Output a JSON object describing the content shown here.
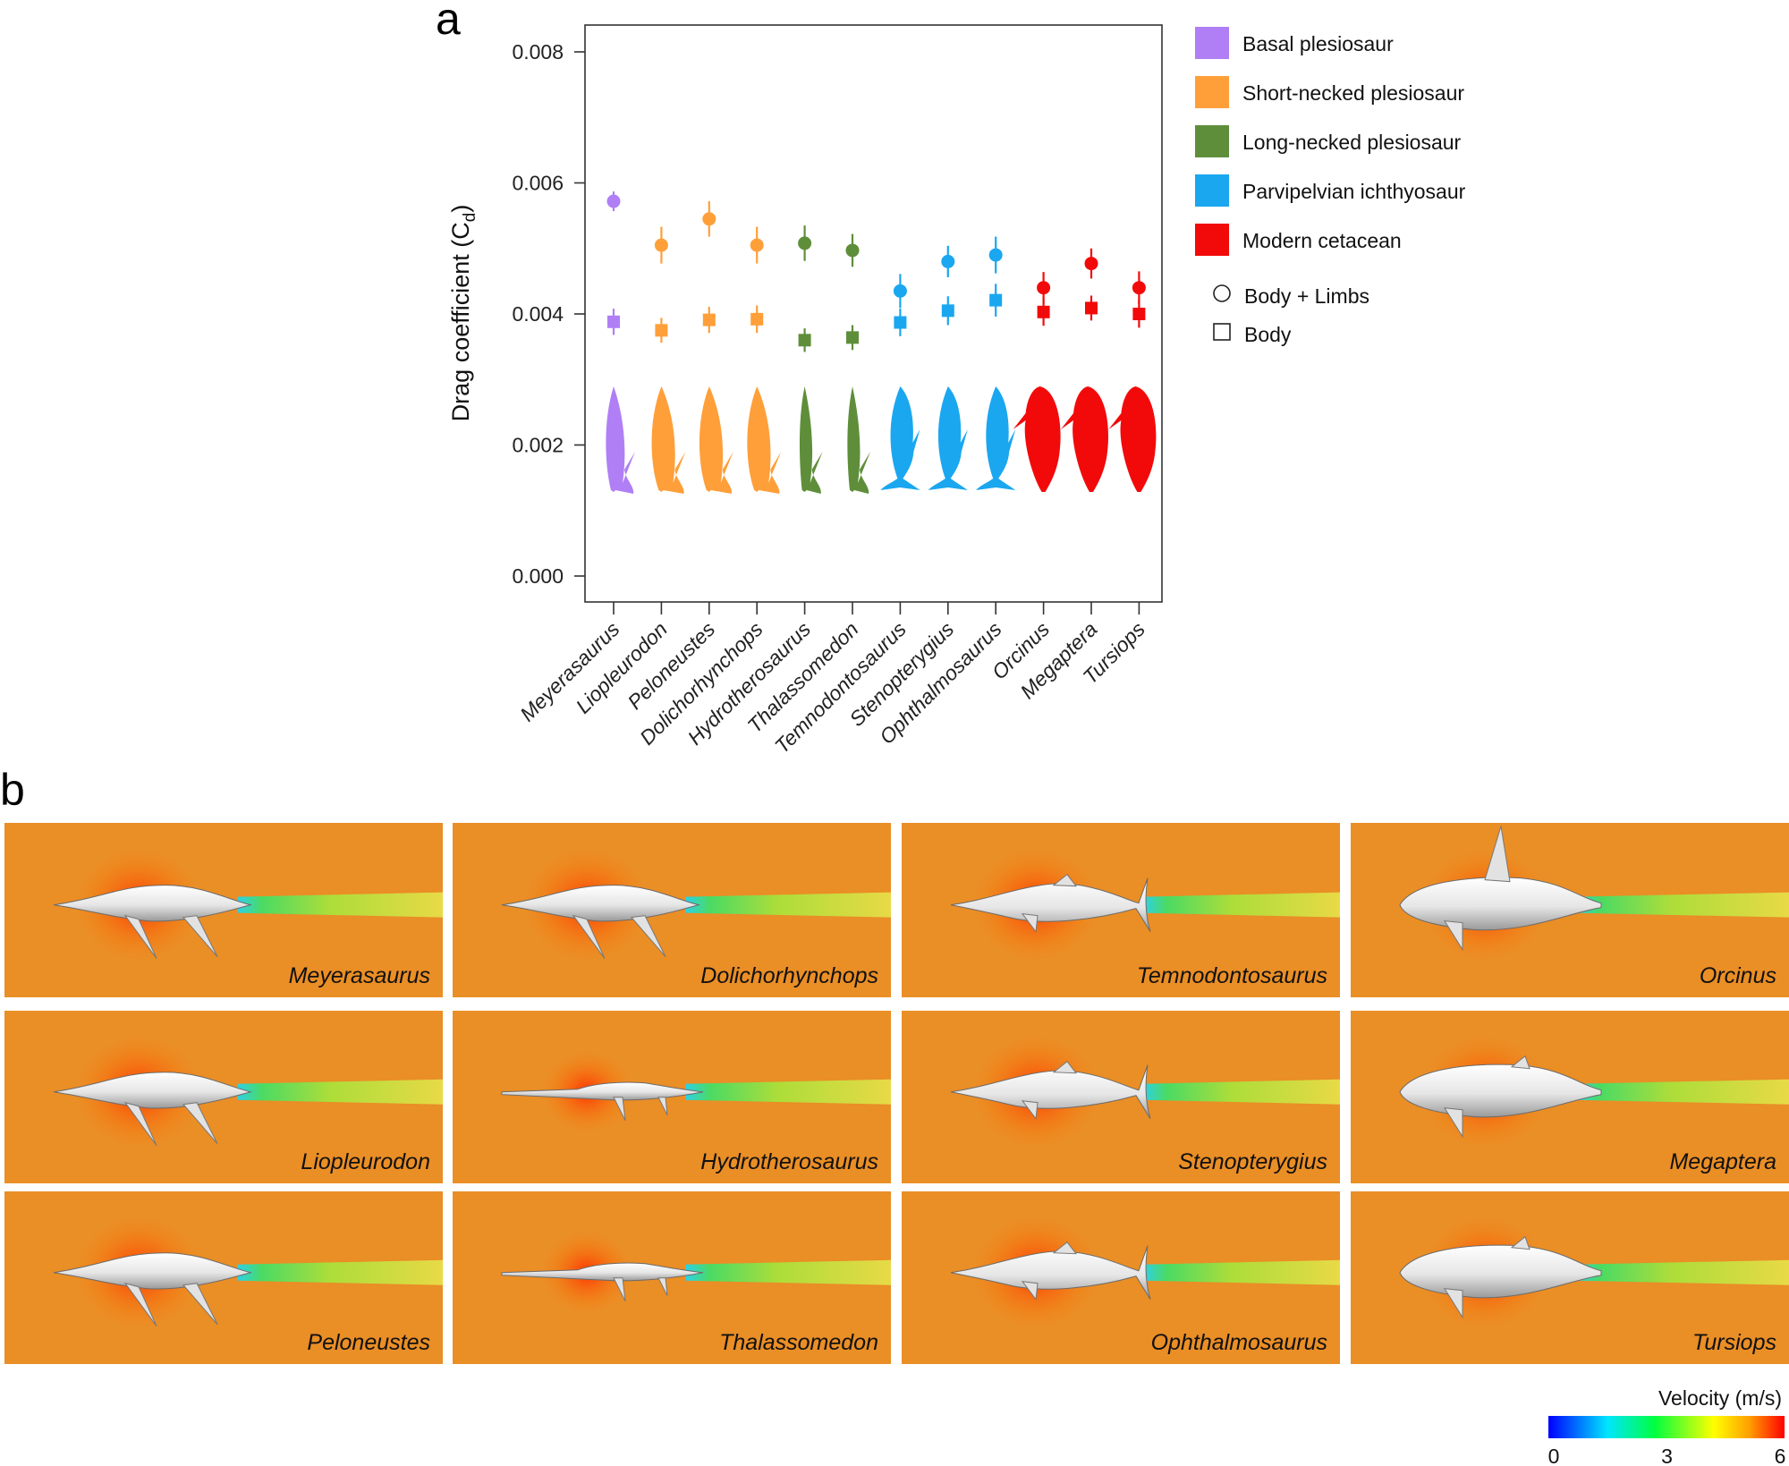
{
  "panel_labels": {
    "a": "a",
    "b": "b"
  },
  "chart_data": [
    {
      "type": "scatter",
      "title": "",
      "ylabel": "Drag coefficient (C",
      "ylabel_subscript": "d",
      "ylabel_close": ")",
      "ylim": [
        0,
        0.0084
      ],
      "yticks": [
        "0.000",
        "0.002",
        "0.004",
        "0.006",
        "0.008"
      ],
      "ytick_values": [
        0.0,
        0.002,
        0.004,
        0.006,
        0.008
      ],
      "categories": [
        "Meyerasaurus",
        "Liopleurodon",
        "Peloneustes",
        "Dolichorhynchops",
        "Hydrotherosaurus",
        "Thalassomedon",
        "Temnodontosaurus",
        "Stenopterygius",
        "Ophthalmosaurus",
        "Orcinus",
        "Megaptera",
        "Tursiops"
      ],
      "groups": [
        "Basal plesiosaur",
        "Short-necked plesiosaur",
        "Short-necked plesiosaur",
        "Short-necked plesiosaur",
        "Long-necked plesiosaur",
        "Long-necked plesiosaur",
        "Parvipelvian ichthyosaur",
        "Parvipelvian ichthyosaur",
        "Parvipelvian ichthyosaur",
        "Modern cetacean",
        "Modern cetacean",
        "Modern cetacean"
      ],
      "series": [
        {
          "name": "Body + Limbs",
          "marker": "circle",
          "values": [
            0.00572,
            0.00505,
            0.00545,
            0.00505,
            0.00508,
            0.00497,
            0.00435,
            0.0048,
            0.0049,
            0.0044,
            0.00477,
            0.0044
          ],
          "err": [
            0.00015,
            0.00028,
            0.00027,
            0.00028,
            0.00027,
            0.00025,
            0.00026,
            0.00024,
            0.00028,
            0.00024,
            0.00023,
            0.00025
          ]
        },
        {
          "name": "Body",
          "marker": "square",
          "values": [
            0.00388,
            0.00375,
            0.00391,
            0.00392,
            0.0036,
            0.00364,
            0.00387,
            0.00405,
            0.00421,
            0.00403,
            0.00409,
            0.004
          ],
          "err": [
            0.0002,
            0.00019,
            0.0002,
            0.00021,
            0.00018,
            0.00019,
            0.00021,
            0.00022,
            0.00025,
            0.00021,
            0.00019,
            0.00021
          ]
        }
      ],
      "legend": [
        {
          "label": "Basal plesiosaur",
          "color": "#b07ff5"
        },
        {
          "label": "Short-necked plesiosaur",
          "color": "#ff9f3a"
        },
        {
          "label": "Long-necked plesiosaur",
          "color": "#5f8e3a"
        },
        {
          "label": "Parvipelvian ichthyosaur",
          "color": "#1aa7f0"
        },
        {
          "label": "Modern cetacean",
          "color": "#f20a0a"
        }
      ],
      "marker_legend": [
        {
          "label": "Body + Limbs",
          "marker": "circle"
        },
        {
          "label": "Body",
          "marker": "square"
        }
      ],
      "group_colors": {
        "Basal plesiosaur": "#b07ff5",
        "Short-necked plesiosaur": "#ff9f3a",
        "Long-necked plesiosaur": "#5f8e3a",
        "Parvipelvian ichthyosaur": "#1aa7f0",
        "Modern cetacean": "#f20a0a"
      },
      "legend_placement": "right"
    },
    {
      "type": "heatmap",
      "title": "Velocity (m/s)",
      "colorbar_ticks": [
        "0",
        "3",
        "6"
      ],
      "colorbar_range": [
        0,
        6
      ],
      "panels": [
        [
          "Meyerasaurus",
          "Dolichorhynchops",
          "Temnodontosaurus",
          "Orcinus"
        ],
        [
          "Liopleurodon",
          "Hydrotherosaurus",
          "Stenopterygius",
          "Megaptera"
        ],
        [
          "Peloneustes",
          "Thalassomedon",
          "Ophthalmosaurus",
          "Tursiops"
        ]
      ]
    }
  ]
}
